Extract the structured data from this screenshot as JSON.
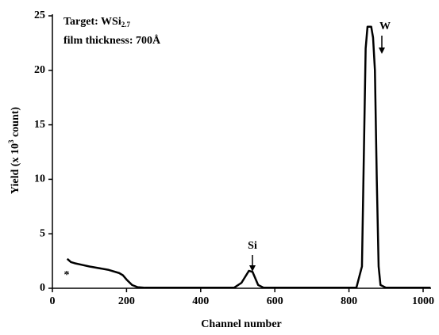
{
  "chart_data": {
    "type": "line",
    "xlabel": "Channel number",
    "ylabel_parts": [
      "Yield (x 10",
      "3",
      " count)"
    ],
    "info_lines": [
      {
        "text": "Target: WSi",
        "sub": "2.7"
      },
      {
        "text": "film thickness: 700Å"
      }
    ],
    "annotations": [
      "Si",
      "W",
      "*"
    ],
    "x": [
      40,
      50,
      60,
      80,
      100,
      150,
      180,
      190,
      200,
      215,
      230,
      250,
      300,
      400,
      490,
      510,
      530,
      540,
      555,
      570,
      700,
      820,
      835,
      845,
      850,
      860,
      865,
      870,
      875,
      880,
      885,
      900,
      1020
    ],
    "series": [
      {
        "color": "#000000",
        "values": [
          2.7,
          2.4,
          2.3,
          2.15,
          2.0,
          1.7,
          1.4,
          1.2,
          0.8,
          0.3,
          0.1,
          0.05,
          0.05,
          0.05,
          0.05,
          0.5,
          1.6,
          1.5,
          0.3,
          0.05,
          0.05,
          0.05,
          2,
          22,
          24,
          24,
          23,
          20,
          10,
          2,
          0.3,
          0.05,
          0.05
        ]
      }
    ],
    "xlim": [
      0,
      1021
    ],
    "xticks": [
      0,
      200,
      400,
      600,
      800,
      1000
    ],
    "ylim": [
      0,
      25
    ],
    "yticks": [
      0,
      5,
      10,
      15,
      20,
      25
    ]
  }
}
